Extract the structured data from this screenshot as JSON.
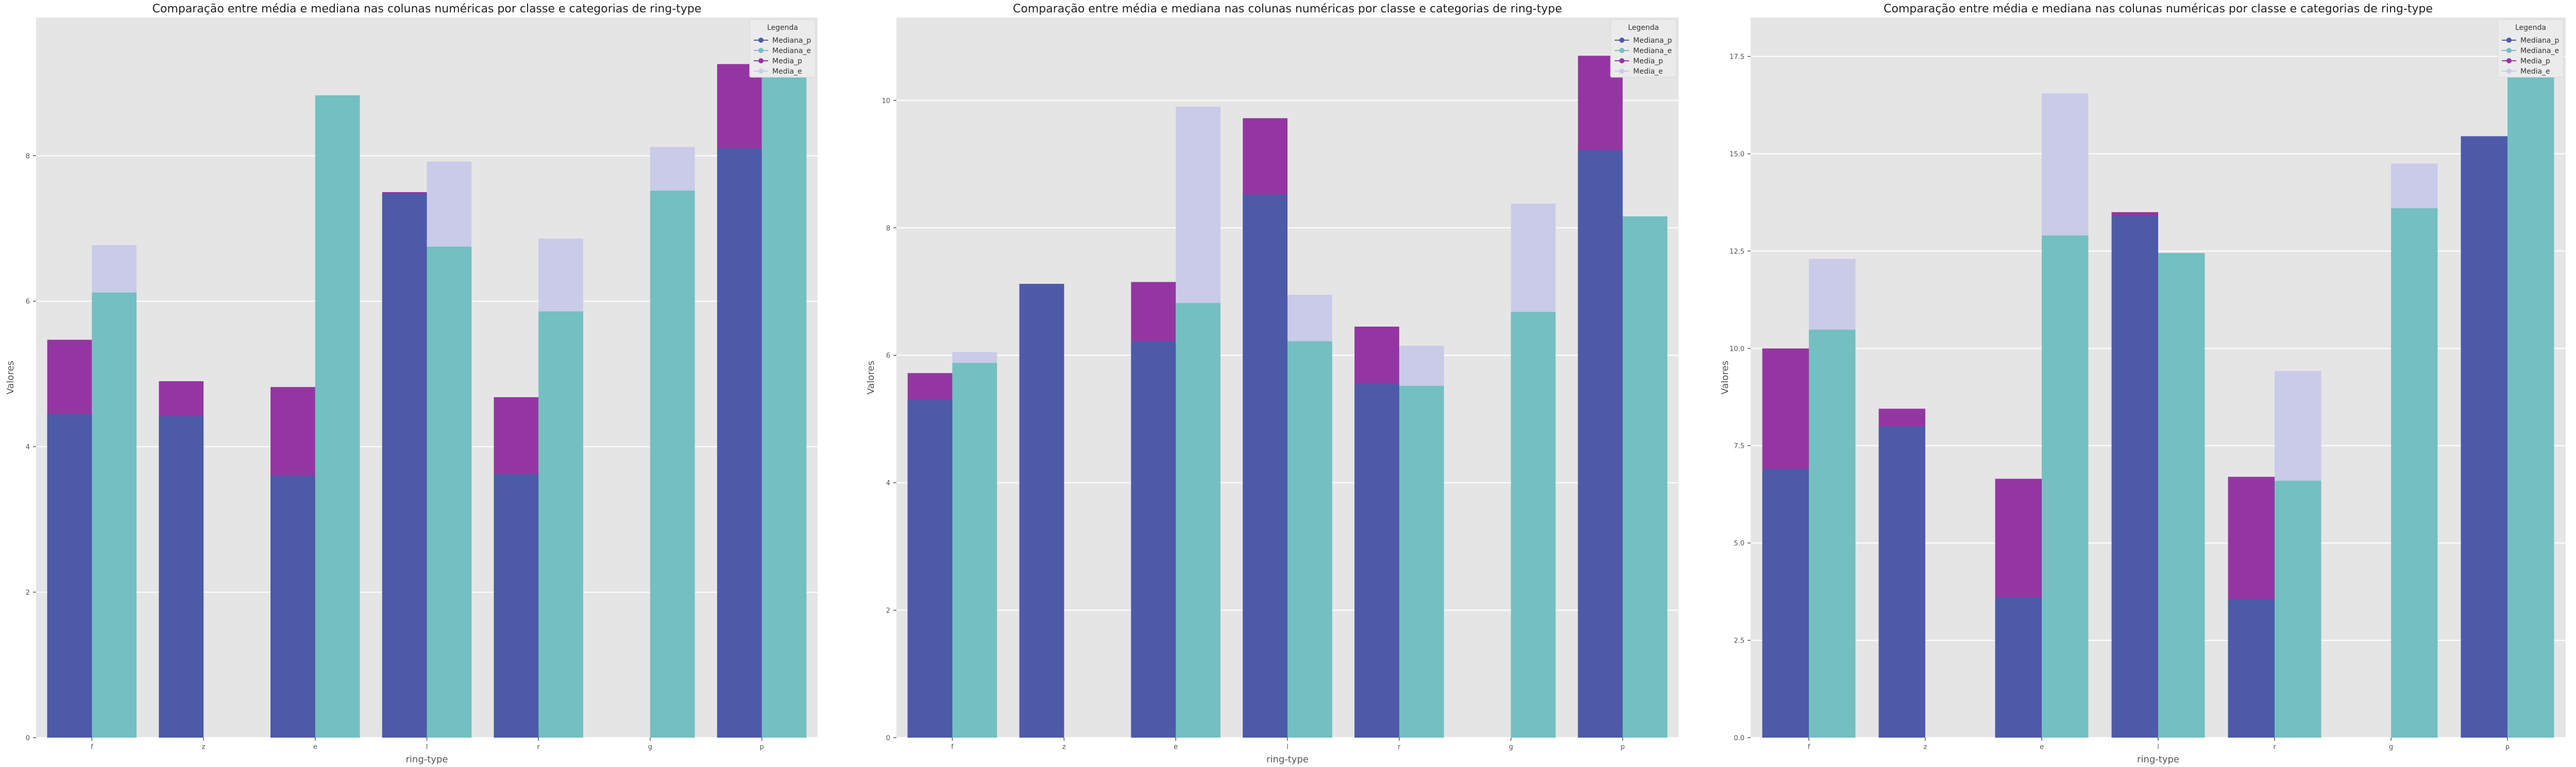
{
  "colors": {
    "plot_bg": "#e5e5e5",
    "grid": "#ffffff",
    "Mediana_p": "#4c5aa8",
    "Mediana_e": "#74bfc1",
    "Media_p": "#9436a1",
    "Media_e": "#c9cbe8",
    "legend_bg": "#ebebeb"
  },
  "chart_data": [
    {
      "type": "bar",
      "title": "Comparação entre média e mediana nas colunas numéricas por classe e categorias de ring-type",
      "xlabel": "ring-type",
      "ylabel": "Valores",
      "categories": [
        "f",
        "z",
        "e",
        "l",
        "r",
        "g",
        "p"
      ],
      "ylim": [
        0,
        9.9
      ],
      "yticks": [
        0,
        2,
        4,
        6,
        8
      ],
      "ytick_labels": [
        "0",
        "2",
        "4",
        "6",
        "8"
      ],
      "grid": true,
      "legend": {
        "title": "Legenda",
        "position": "top-right",
        "entries": [
          "Mediana_p",
          "Mediana_e",
          "Media_p",
          "Media_e"
        ]
      },
      "series": [
        {
          "name": "Mediana_p",
          "values": [
            4.45,
            4.42,
            3.6,
            7.48,
            3.62,
            null,
            8.1
          ]
        },
        {
          "name": "Mediana_e",
          "values": [
            6.12,
            null,
            8.83,
            6.75,
            5.86,
            7.52,
            9.45
          ]
        },
        {
          "name": "Media_p",
          "values": [
            5.47,
            4.9,
            4.82,
            7.5,
            4.68,
            null,
            9.26
          ]
        },
        {
          "name": "Media_e",
          "values": [
            6.77,
            null,
            8.83,
            7.92,
            6.86,
            8.12,
            9.45
          ]
        }
      ]
    },
    {
      "type": "bar",
      "title": "Comparação entre média e mediana nas colunas numéricas por classe e categorias de ring-type",
      "xlabel": "ring-type",
      "ylabel": "Valores",
      "categories": [
        "f",
        "z",
        "e",
        "l",
        "r",
        "g",
        "p"
      ],
      "ylim": [
        0,
        11.3
      ],
      "yticks": [
        0,
        2,
        4,
        6,
        8,
        10
      ],
      "ytick_labels": [
        "0",
        "2",
        "4",
        "6",
        "8",
        "10"
      ],
      "grid": true,
      "legend": {
        "title": "Legenda",
        "position": "top-right",
        "entries": [
          "Mediana_p",
          "Mediana_e",
          "Media_p",
          "Media_e"
        ]
      },
      "series": [
        {
          "name": "Mediana_p",
          "values": [
            5.3,
            7.12,
            6.22,
            8.52,
            5.55,
            null,
            9.22
          ]
        },
        {
          "name": "Mediana_e",
          "values": [
            5.88,
            null,
            6.82,
            6.22,
            5.52,
            6.68,
            8.18
          ]
        },
        {
          "name": "Media_p",
          "values": [
            5.72,
            7.12,
            7.15,
            9.72,
            6.45,
            null,
            10.7
          ]
        },
        {
          "name": "Media_e",
          "values": [
            6.05,
            null,
            9.9,
            6.95,
            6.15,
            8.38,
            8.18
          ]
        }
      ]
    },
    {
      "type": "bar",
      "title": "Comparação entre média e mediana nas colunas numéricas por classe e categorias de ring-type",
      "xlabel": "ring-type",
      "ylabel": "Valores",
      "categories": [
        "f",
        "z",
        "e",
        "l",
        "r",
        "g",
        "p"
      ],
      "ylim": [
        0,
        18.5
      ],
      "yticks": [
        0,
        2.5,
        5,
        7.5,
        10,
        12.5,
        15,
        17.5
      ],
      "ytick_labels": [
        "0.0",
        "2.5",
        "5.0",
        "7.5",
        "10.0",
        "12.5",
        "15.0",
        "17.5"
      ],
      "grid": true,
      "legend": {
        "title": "Legenda",
        "position": "top-right",
        "entries": [
          "Mediana_p",
          "Mediana_e",
          "Media_p",
          "Media_e"
        ]
      },
      "series": [
        {
          "name": "Mediana_p",
          "values": [
            6.9,
            8.0,
            3.6,
            13.4,
            3.55,
            null,
            15.45
          ]
        },
        {
          "name": "Mediana_e",
          "values": [
            10.48,
            null,
            12.9,
            12.45,
            6.6,
            13.6,
            17.65
          ]
        },
        {
          "name": "Media_p",
          "values": [
            10.0,
            8.45,
            6.65,
            13.5,
            6.7,
            null,
            15.45
          ]
        },
        {
          "name": "Media_e",
          "values": [
            12.3,
            null,
            16.55,
            12.45,
            9.42,
            14.75,
            17.65
          ]
        }
      ]
    }
  ]
}
